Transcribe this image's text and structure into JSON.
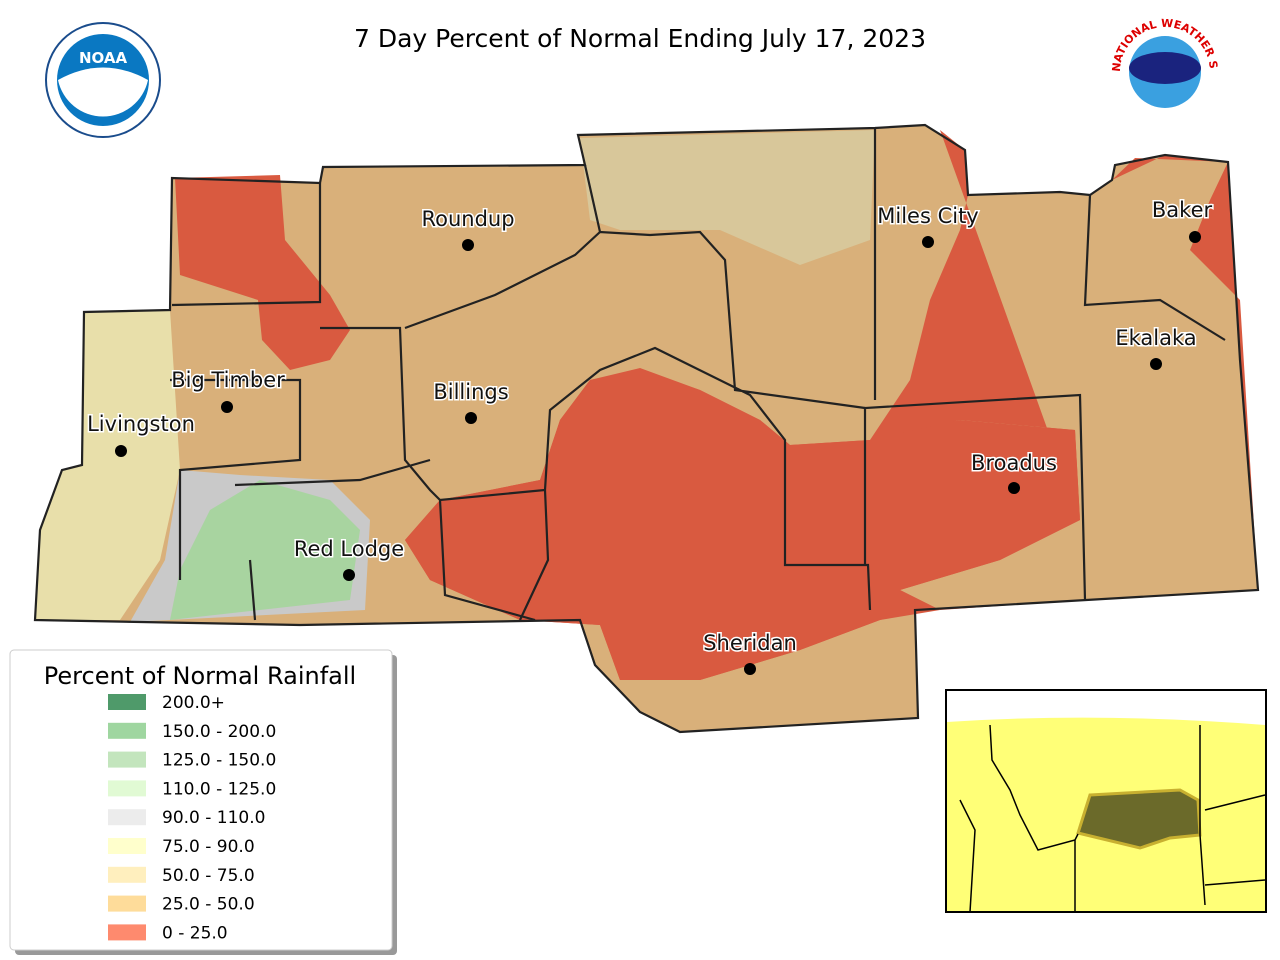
{
  "title": "7 Day Percent of Normal Ending July 17, 2023",
  "logos": {
    "noaa": "NOAA",
    "nws": "NATIONAL WEATHER SERVICE"
  },
  "cities": [
    "Roundup",
    "Miles City",
    "Baker",
    "Ekalaka",
    "Big Timber",
    "Billings",
    "Livingston",
    "Broadus",
    "Red Lodge",
    "Sheridan"
  ],
  "legend": {
    "title": "Percent of Normal Rainfall",
    "items": [
      {
        "label": "200.0+",
        "color": "#4f9a6a"
      },
      {
        "label": "150.0 - 200.0",
        "color": "#9fd6a0"
      },
      {
        "label": "125.0 - 150.0",
        "color": "#c3e5bd"
      },
      {
        "label": "110.0 - 125.0",
        "color": "#e1fad4"
      },
      {
        "label": "90.0 - 110.0",
        "color": "#ececec"
      },
      {
        "label": "75.0 - 90.0",
        "color": "#ffffcc"
      },
      {
        "label": "50.0 - 75.0",
        "color": "#ffefbe"
      },
      {
        "label": "25.0 - 50.0",
        "color": "#fedc9a"
      },
      {
        "label": "0 - 25.0",
        "color": "#fe8a6e"
      }
    ]
  }
}
